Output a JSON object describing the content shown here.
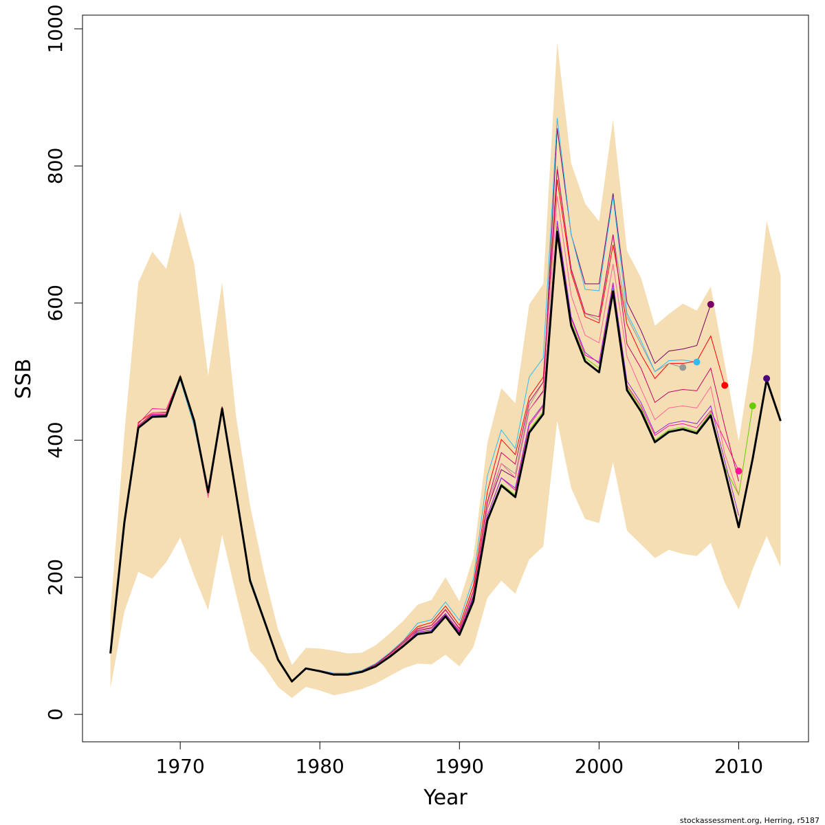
{
  "chart_data": {
    "type": "line",
    "xlabel": "Year",
    "ylabel": "SSB",
    "xlim": [
      1963,
      2015
    ],
    "ylim": [
      -40,
      1020
    ],
    "x_ticks": [
      1970,
      1980,
      1990,
      2000,
      2010
    ],
    "y_ticks": [
      0,
      200,
      400,
      600,
      800,
      1000
    ],
    "credit": "stockassessment.org, Herring, r5187",
    "band_color": "#F5DEB3",
    "confidence_band": {
      "years": [
        1965,
        1966,
        1967,
        1968,
        1969,
        1970,
        1971,
        1972,
        1973,
        1974,
        1975,
        1976,
        1977,
        1978,
        1979,
        1980,
        1981,
        1982,
        1983,
        1984,
        1985,
        1986,
        1987,
        1988,
        1989,
        1990,
        1991,
        1992,
        1993,
        1994,
        1995,
        1996,
        1997,
        1998,
        1999,
        2000,
        2001,
        2002,
        2003,
        2004,
        2005,
        2006,
        2007,
        2008,
        2009,
        2010,
        2011,
        2012,
        2013
      ],
      "lower": [
        38,
        150,
        208,
        198,
        222,
        258,
        202,
        152,
        262,
        175,
        93,
        70,
        40,
        24,
        40,
        35,
        28,
        32,
        37,
        45,
        56,
        67,
        74,
        73,
        87,
        70,
        98,
        170,
        195,
        176,
        226,
        245,
        428,
        330,
        285,
        279,
        368,
        268,
        248,
        228,
        240,
        234,
        231,
        250,
        192,
        153,
        212,
        260,
        215
      ],
      "upper": [
        150,
        410,
        630,
        675,
        650,
        733,
        657,
        494,
        630,
        434,
        305,
        207,
        124,
        72,
        97,
        96,
        93,
        89,
        90,
        101,
        118,
        137,
        160,
        167,
        200,
        165,
        230,
        396,
        476,
        454,
        598,
        628,
        980,
        804,
        745,
        719,
        868,
        676,
        637,
        567,
        584,
        599,
        589,
        624,
        511,
        398,
        530,
        720,
        640
      ]
    },
    "main_series": {
      "name": "",
      "color": "#000000",
      "years": [
        1965,
        1966,
        1967,
        1968,
        1969,
        1970,
        1971,
        1972,
        1973,
        1974,
        1975,
        1976,
        1977,
        1978,
        1979,
        1980,
        1981,
        1982,
        1983,
        1984,
        1985,
        1986,
        1987,
        1988,
        1989,
        1990,
        1991,
        1992,
        1993,
        1994,
        1995,
        1996,
        1997,
        1998,
        1999,
        2000,
        2001,
        2002,
        2003,
        2004,
        2005,
        2006,
        2007,
        2008,
        2009,
        2010,
        2011,
        2012,
        2013
      ],
      "values": [
        89,
        280,
        418,
        434,
        435,
        492,
        428,
        324,
        446,
        322,
        195,
        138,
        80,
        48,
        67,
        63,
        58,
        58,
        62,
        70,
        84,
        100,
        117,
        120,
        143,
        116,
        165,
        283,
        334,
        317,
        411,
        438,
        704,
        567,
        515,
        499,
        617,
        473,
        442,
        397,
        412,
        416,
        410,
        436,
        356,
        273,
        373,
        488,
        428
      ]
    },
    "retro_series": [
      {
        "name": "",
        "color": "#7B0066",
        "peel_year": 2008,
        "peel_value": 598,
        "values": [
          91,
          282,
          421,
          438,
          438,
          494,
          430,
          326,
          449,
          325,
          197,
          140,
          81,
          49,
          67,
          64,
          59,
          59,
          63,
          73,
          87,
          104,
          122,
          126,
          147,
          121,
          173,
          300,
          357,
          345,
          444,
          472,
          855,
          700,
          628,
          628,
          760,
          601,
          560,
          512,
          530,
          533,
          538,
          598
        ]
      },
      {
        "name": "",
        "color": "#FF0000",
        "peel_year": 2009,
        "peel_value": 480,
        "values": [
          90,
          282,
          426,
          440,
          441,
          494,
          430,
          318,
          449,
          324,
          198,
          140,
          81,
          49,
          67,
          64,
          60,
          60,
          64,
          74,
          89,
          107,
          128,
          134,
          158,
          130,
          188,
          325,
          401,
          379,
          463,
          492,
          780,
          644,
          580,
          571,
          685,
          569,
          525,
          490,
          512,
          512,
          515,
          552,
          480
        ]
      },
      {
        "name": "",
        "color": "#FF1493",
        "peel_year": 2010,
        "peel_value": 355,
        "values": [
          90,
          281,
          424,
          446,
          445,
          493,
          428,
          316,
          447,
          323,
          197,
          139,
          81,
          49,
          67,
          63,
          59,
          59,
          63,
          72,
          86,
          102,
          120,
          123,
          146,
          122,
          171,
          290,
          345,
          327,
          422,
          450,
          712,
          578,
          524,
          514,
          630,
          480,
          450,
          407,
          421,
          424,
          418,
          443,
          400,
          355
        ]
      },
      {
        "name": "",
        "color": "#66CC00",
        "peel_year": 2011,
        "peel_value": 450,
        "values": [
          89,
          280,
          419,
          436,
          437,
          492,
          428,
          324,
          446,
          322,
          195,
          138,
          80,
          48,
          67,
          63,
          58,
          58,
          62,
          70,
          84,
          100,
          118,
          121,
          144,
          117,
          166,
          285,
          336,
          320,
          415,
          442,
          708,
          572,
          520,
          505,
          622,
          478,
          447,
          400,
          415,
          419,
          413,
          440,
          360,
          320,
          450
        ]
      },
      {
        "name": "",
        "color": "#4B0082",
        "peel_year": 2012,
        "peel_value": 490,
        "values": [
          89,
          280,
          418,
          434,
          435,
          492,
          428,
          324,
          446,
          322,
          195,
          138,
          80,
          48,
          67,
          63,
          58,
          58,
          62,
          70,
          84,
          100,
          117,
          120,
          143,
          116,
          165,
          283,
          334,
          317,
          411,
          438,
          704,
          567,
          515,
          499,
          617,
          473,
          442,
          397,
          412,
          416,
          410,
          436,
          356,
          273,
          373,
          490
        ]
      },
      {
        "name": "",
        "color": "#999999",
        "peel_year": 2006,
        "peel_value": 506,
        "values": [
          90,
          281,
          420,
          435,
          436,
          490,
          421,
          322,
          444,
          324,
          198,
          140,
          81,
          49,
          67,
          64,
          59,
          59,
          63,
          72,
          87,
          104,
          125,
          130,
          152,
          124,
          178,
          308,
          366,
          351,
          450,
          485,
          800,
          648,
          585,
          575,
          700,
          580,
          540,
          500,
          512,
          506
        ]
      },
      {
        "name": "",
        "color": "#33BBEE",
        "peel_year": 2007,
        "peel_value": 514,
        "values": [
          90,
          281,
          420,
          433,
          433,
          488,
          420,
          322,
          443,
          325,
          199,
          141,
          82,
          49,
          68,
          64,
          60,
          60,
          64,
          74,
          90,
          108,
          133,
          138,
          164,
          137,
          198,
          348,
          415,
          388,
          492,
          520,
          870,
          700,
          620,
          618,
          755,
          585,
          545,
          500,
          516,
          517,
          514
        ]
      },
      {
        "name": "",
        "color": "#FF6699",
        "peel_year": null,
        "peel_value": null,
        "values": [
          89,
          280,
          420,
          440,
          440,
          493,
          429,
          316,
          447,
          323,
          196,
          139,
          81,
          49,
          67,
          63,
          59,
          59,
          63,
          72,
          86,
          102,
          124,
          127,
          152,
          126,
          178,
          300,
          366,
          345,
          444,
          470,
          756,
          611,
          553,
          542,
          657,
          522,
          475,
          430,
          447,
          450,
          447,
          478,
          380,
          320
        ]
      },
      {
        "name": "",
        "color": "#CC0066",
        "peel_year": null,
        "peel_value": null,
        "values": [
          90,
          281,
          421,
          438,
          438,
          494,
          430,
          326,
          449,
          325,
          197,
          140,
          81,
          49,
          67,
          64,
          59,
          59,
          63,
          73,
          88,
          105,
          125,
          130,
          153,
          125,
          180,
          310,
          382,
          365,
          456,
          485,
          795,
          650,
          585,
          580,
          700,
          540,
          505,
          455,
          470,
          474,
          472,
          505,
          420,
          340
        ]
      },
      {
        "name": "",
        "color": "#8A2BE2",
        "peel_year": null,
        "peel_value": null,
        "values": [
          89,
          280,
          419,
          436,
          436,
          492,
          428,
          323,
          446,
          322,
          196,
          138,
          80,
          48,
          67,
          63,
          58,
          58,
          62,
          71,
          85,
          101,
          120,
          123,
          147,
          119,
          170,
          290,
          345,
          330,
          425,
          452,
          720,
          580,
          528,
          512,
          628,
          486,
          455,
          410,
          424,
          428,
          424,
          450,
          370,
          290
        ]
      }
    ]
  }
}
